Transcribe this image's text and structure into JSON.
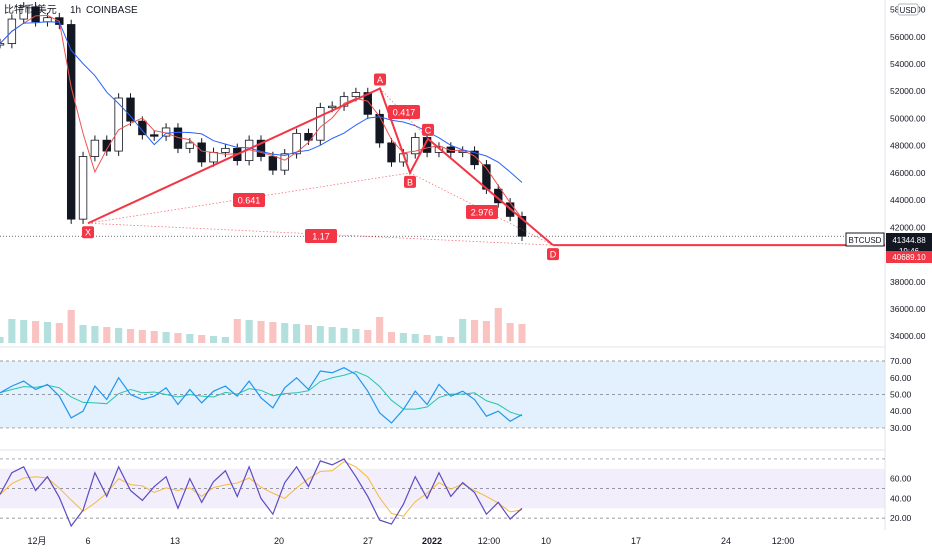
{
  "header": {
    "symbol": "比特币/美元",
    "interval": "1h",
    "exchange": "COINBASE",
    "currency_badge": "USD"
  },
  "colors": {
    "up": "#26a69a",
    "down": "#ef5350",
    "candle": "#131722",
    "pattern": "#f23645",
    "sma_fast": "#ef5350",
    "sma_slow": "#2962ff",
    "rsi_line": "#2196f3",
    "rsi_ma": "#26c6a6",
    "rsi_band": "#e3f0fd",
    "stoch_k": "#5b4cc4",
    "stoch_d": "#f6b93b",
    "stoch_band": "#f3eefb",
    "axis_text": "#131722"
  },
  "price_axis": {
    "ticks": [
      "58000.00",
      "56000.00",
      "54000.00",
      "52000.00",
      "50000.00",
      "48000.00",
      "46000.00",
      "44000.00",
      "42000.00",
      "38000.00",
      "36000.00",
      "34000.00"
    ],
    "current_symbol_tag": "BTCUSD",
    "current_price": "41344.88",
    "countdown": "19:46",
    "target_price": "40689.10"
  },
  "rsi_axis": {
    "ticks": [
      "70.00",
      "60.00",
      "50.00",
      "40.00",
      "30.00"
    ]
  },
  "stoch_axis": {
    "ticks": [
      "60.00",
      "40.00",
      "20.00"
    ]
  },
  "time_axis": {
    "ticks": [
      "12月",
      "6",
      "13",
      "20",
      "27",
      "2022",
      "12:00",
      "10",
      "17",
      "24",
      "12:00"
    ]
  },
  "chart_data": {
    "type": "line",
    "title": "",
    "xlabel": "",
    "ylabel": "",
    "x": [
      0,
      2,
      4,
      6,
      8,
      10,
      12,
      14,
      16,
      18,
      20,
      22,
      24,
      26,
      28,
      30,
      32,
      34,
      36,
      38,
      40,
      42,
      44,
      46,
      48,
      50,
      52,
      54,
      56,
      58,
      60,
      62,
      64,
      66,
      68,
      70,
      72,
      74,
      76,
      78,
      80,
      82,
      84,
      86,
      88
    ],
    "series": [
      {
        "values": [
          55500,
          57300,
          58200,
          57100,
          57400,
          56900,
          42600,
          47200,
          48400,
          47600,
          51500,
          49800,
          48800,
          48700,
          49300,
          47800,
          48200,
          46800,
          47500,
          47800,
          46900,
          48400,
          47200,
          46200,
          47400,
          48900,
          48400,
          50800,
          50900,
          51600,
          51900,
          50300,
          48200,
          46800,
          47400,
          48600,
          47500,
          47900,
          47500,
          47600,
          46600,
          44800,
          43800,
          42800,
          41345
        ]
      }
    ],
    "ylim": [
      33500,
      58700
    ],
    "harmonic_pattern": {
      "points": [
        {
          "label": "X",
          "value": 42300
        },
        {
          "label": "A",
          "value": 52200
        },
        {
          "label": "B",
          "value": 46000
        },
        {
          "label": "C",
          "value": 48500
        },
        {
          "label": "D",
          "value": 40689
        }
      ],
      "ratios": [
        "0.641",
        "0.417",
        "2.976",
        "1.17"
      ]
    },
    "rsi": {
      "ylim": [
        18,
        76
      ],
      "values": [
        51,
        55,
        58,
        53,
        56,
        49,
        36,
        40,
        55,
        47,
        60,
        50,
        47,
        49,
        54,
        44,
        53,
        45,
        52,
        55,
        49,
        58,
        48,
        42,
        54,
        60,
        53,
        64,
        63,
        66,
        62,
        52,
        39,
        33,
        41,
        52,
        44,
        56,
        49,
        52,
        47,
        37,
        40,
        34,
        38
      ]
    },
    "stoch": {
      "ylim": [
        10,
        85
      ],
      "values": [
        44,
        66,
        72,
        48,
        62,
        41,
        12,
        28,
        66,
        42,
        72,
        48,
        38,
        52,
        62,
        30,
        60,
        36,
        57,
        68,
        42,
        72,
        40,
        24,
        56,
        72,
        52,
        78,
        74,
        80,
        62,
        42,
        18,
        14,
        34,
        62,
        40,
        66,
        42,
        56,
        46,
        24,
        36,
        19,
        30
      ]
    }
  }
}
